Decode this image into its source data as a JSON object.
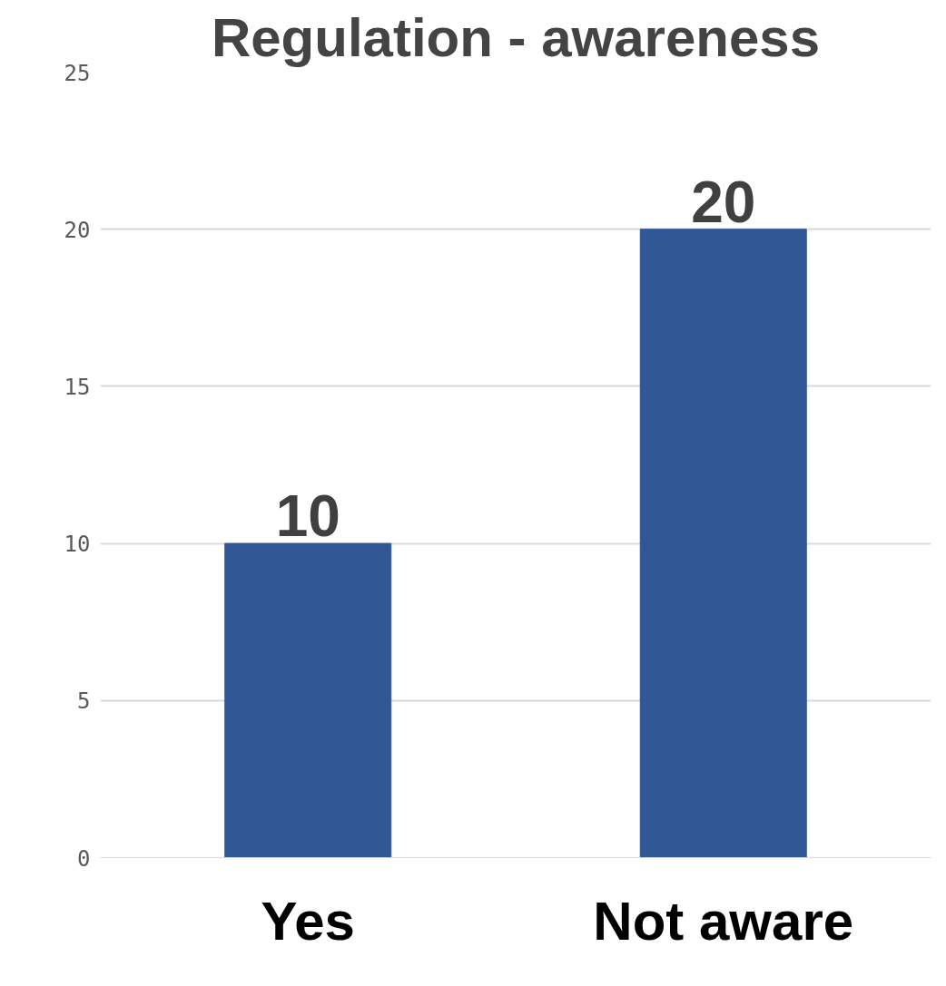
{
  "chart_data": {
    "type": "bar",
    "title": "Regulation - awareness",
    "categories": [
      "Yes",
      "Not aware"
    ],
    "values": [
      10,
      20
    ],
    "color": "#305796",
    "ylim": [
      0,
      25
    ],
    "yticks": [
      0,
      5,
      10,
      15,
      20,
      25
    ],
    "grid": "y",
    "data_labels": true
  }
}
